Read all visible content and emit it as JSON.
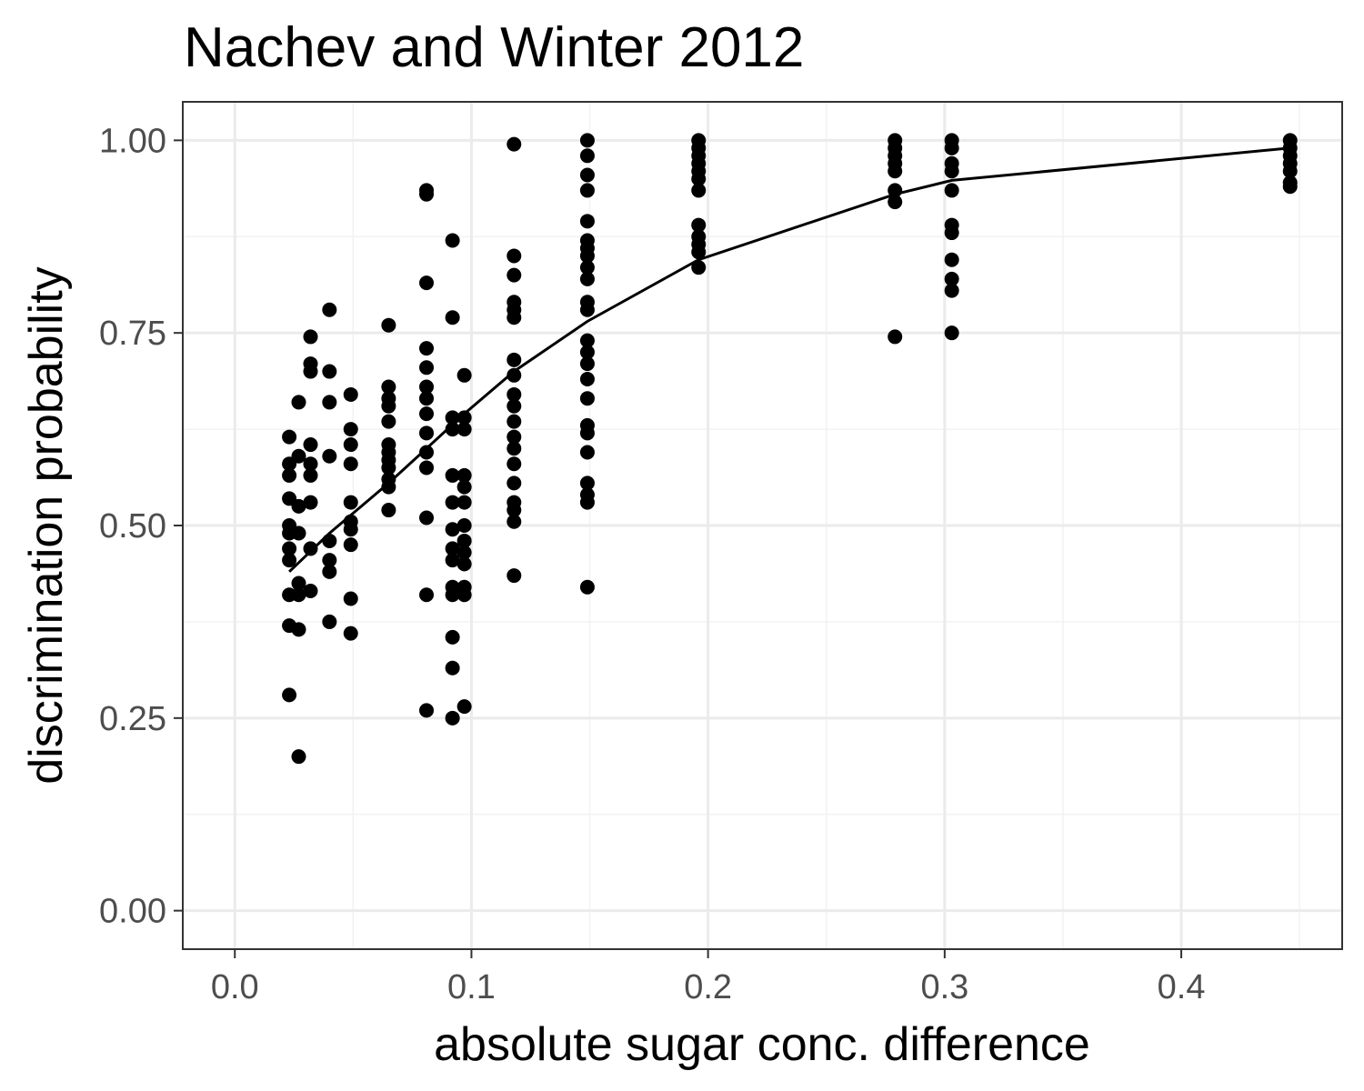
{
  "chart_data": {
    "type": "scatter",
    "title": "Nachev and Winter 2012",
    "xlabel": "absolute sugar conc. difference",
    "ylabel": "discrimination probability",
    "xlim": [
      -0.022,
      0.468
    ],
    "ylim": [
      -0.05,
      1.05
    ],
    "x_ticks": [
      0.0,
      0.1,
      0.2,
      0.3,
      0.4
    ],
    "x_tick_labels": [
      "0.0",
      "0.1",
      "0.2",
      "0.3",
      "0.4"
    ],
    "y_ticks": [
      0.0,
      0.25,
      0.5,
      0.75,
      1.0
    ],
    "y_tick_labels": [
      "0.00",
      "0.25",
      "0.50",
      "0.75",
      "1.00"
    ],
    "grid": true,
    "point_color": "#000000",
    "points": [
      [
        0.023,
        0.615
      ],
      [
        0.023,
        0.58
      ],
      [
        0.023,
        0.565
      ],
      [
        0.023,
        0.535
      ],
      [
        0.023,
        0.5
      ],
      [
        0.023,
        0.49
      ],
      [
        0.023,
        0.47
      ],
      [
        0.023,
        0.455
      ],
      [
        0.023,
        0.41
      ],
      [
        0.023,
        0.37
      ],
      [
        0.023,
        0.28
      ],
      [
        0.027,
        0.66
      ],
      [
        0.027,
        0.59
      ],
      [
        0.027,
        0.525
      ],
      [
        0.027,
        0.49
      ],
      [
        0.027,
        0.425
      ],
      [
        0.027,
        0.41
      ],
      [
        0.027,
        0.365
      ],
      [
        0.027,
        0.2
      ],
      [
        0.032,
        0.745
      ],
      [
        0.032,
        0.71
      ],
      [
        0.032,
        0.7
      ],
      [
        0.032,
        0.605
      ],
      [
        0.032,
        0.58
      ],
      [
        0.032,
        0.565
      ],
      [
        0.032,
        0.53
      ],
      [
        0.032,
        0.47
      ],
      [
        0.032,
        0.415
      ],
      [
        0.04,
        0.78
      ],
      [
        0.04,
        0.7
      ],
      [
        0.04,
        0.66
      ],
      [
        0.04,
        0.59
      ],
      [
        0.04,
        0.48
      ],
      [
        0.04,
        0.455
      ],
      [
        0.04,
        0.44
      ],
      [
        0.04,
        0.375
      ],
      [
        0.049,
        0.67
      ],
      [
        0.049,
        0.625
      ],
      [
        0.049,
        0.605
      ],
      [
        0.049,
        0.58
      ],
      [
        0.049,
        0.53
      ],
      [
        0.049,
        0.505
      ],
      [
        0.049,
        0.495
      ],
      [
        0.049,
        0.475
      ],
      [
        0.049,
        0.405
      ],
      [
        0.049,
        0.36
      ],
      [
        0.065,
        0.76
      ],
      [
        0.065,
        0.68
      ],
      [
        0.065,
        0.665
      ],
      [
        0.065,
        0.655
      ],
      [
        0.065,
        0.635
      ],
      [
        0.065,
        0.605
      ],
      [
        0.065,
        0.595
      ],
      [
        0.065,
        0.585
      ],
      [
        0.065,
        0.575
      ],
      [
        0.065,
        0.56
      ],
      [
        0.065,
        0.55
      ],
      [
        0.065,
        0.52
      ],
      [
        0.081,
        0.935
      ],
      [
        0.081,
        0.93
      ],
      [
        0.081,
        0.815
      ],
      [
        0.081,
        0.73
      ],
      [
        0.081,
        0.705
      ],
      [
        0.081,
        0.68
      ],
      [
        0.081,
        0.665
      ],
      [
        0.081,
        0.645
      ],
      [
        0.081,
        0.62
      ],
      [
        0.081,
        0.595
      ],
      [
        0.081,
        0.575
      ],
      [
        0.081,
        0.51
      ],
      [
        0.081,
        0.41
      ],
      [
        0.081,
        0.26
      ],
      [
        0.092,
        0.87
      ],
      [
        0.092,
        0.77
      ],
      [
        0.092,
        0.64
      ],
      [
        0.092,
        0.625
      ],
      [
        0.092,
        0.565
      ],
      [
        0.092,
        0.53
      ],
      [
        0.092,
        0.495
      ],
      [
        0.092,
        0.47
      ],
      [
        0.092,
        0.455
      ],
      [
        0.092,
        0.42
      ],
      [
        0.092,
        0.41
      ],
      [
        0.092,
        0.355
      ],
      [
        0.092,
        0.315
      ],
      [
        0.092,
        0.25
      ],
      [
        0.097,
        0.695
      ],
      [
        0.097,
        0.64
      ],
      [
        0.097,
        0.625
      ],
      [
        0.097,
        0.565
      ],
      [
        0.097,
        0.55
      ],
      [
        0.097,
        0.53
      ],
      [
        0.097,
        0.5
      ],
      [
        0.097,
        0.48
      ],
      [
        0.097,
        0.465
      ],
      [
        0.097,
        0.45
      ],
      [
        0.097,
        0.42
      ],
      [
        0.097,
        0.41
      ],
      [
        0.097,
        0.265
      ],
      [
        0.118,
        0.995
      ],
      [
        0.118,
        0.85
      ],
      [
        0.118,
        0.825
      ],
      [
        0.118,
        0.79
      ],
      [
        0.118,
        0.78
      ],
      [
        0.118,
        0.77
      ],
      [
        0.118,
        0.715
      ],
      [
        0.118,
        0.695
      ],
      [
        0.118,
        0.67
      ],
      [
        0.118,
        0.655
      ],
      [
        0.118,
        0.635
      ],
      [
        0.118,
        0.615
      ],
      [
        0.118,
        0.6
      ],
      [
        0.118,
        0.58
      ],
      [
        0.118,
        0.555
      ],
      [
        0.118,
        0.53
      ],
      [
        0.118,
        0.52
      ],
      [
        0.118,
        0.505
      ],
      [
        0.118,
        0.435
      ],
      [
        0.149,
        1.0
      ],
      [
        0.149,
        0.98
      ],
      [
        0.149,
        0.955
      ],
      [
        0.149,
        0.935
      ],
      [
        0.149,
        0.895
      ],
      [
        0.149,
        0.87
      ],
      [
        0.149,
        0.86
      ],
      [
        0.149,
        0.85
      ],
      [
        0.149,
        0.835
      ],
      [
        0.149,
        0.82
      ],
      [
        0.149,
        0.79
      ],
      [
        0.149,
        0.78
      ],
      [
        0.149,
        0.74
      ],
      [
        0.149,
        0.725
      ],
      [
        0.149,
        0.71
      ],
      [
        0.149,
        0.69
      ],
      [
        0.149,
        0.665
      ],
      [
        0.149,
        0.63
      ],
      [
        0.149,
        0.62
      ],
      [
        0.149,
        0.595
      ],
      [
        0.149,
        0.555
      ],
      [
        0.149,
        0.54
      ],
      [
        0.149,
        0.53
      ],
      [
        0.149,
        0.42
      ],
      [
        0.196,
        1.0
      ],
      [
        0.196,
        0.99
      ],
      [
        0.196,
        0.98
      ],
      [
        0.196,
        0.97
      ],
      [
        0.196,
        0.96
      ],
      [
        0.196,
        0.95
      ],
      [
        0.196,
        0.935
      ],
      [
        0.196,
        0.89
      ],
      [
        0.196,
        0.875
      ],
      [
        0.196,
        0.865
      ],
      [
        0.196,
        0.855
      ],
      [
        0.196,
        0.835
      ],
      [
        0.279,
        1.0
      ],
      [
        0.279,
        0.99
      ],
      [
        0.279,
        0.98
      ],
      [
        0.279,
        0.97
      ],
      [
        0.279,
        0.96
      ],
      [
        0.279,
        0.935
      ],
      [
        0.279,
        0.92
      ],
      [
        0.279,
        0.745
      ],
      [
        0.303,
        1.0
      ],
      [
        0.303,
        0.99
      ],
      [
        0.303,
        0.97
      ],
      [
        0.303,
        0.96
      ],
      [
        0.303,
        0.935
      ],
      [
        0.303,
        0.89
      ],
      [
        0.303,
        0.88
      ],
      [
        0.303,
        0.845
      ],
      [
        0.303,
        0.82
      ],
      [
        0.303,
        0.805
      ],
      [
        0.303,
        0.75
      ],
      [
        0.446,
        1.0
      ],
      [
        0.446,
        0.99
      ],
      [
        0.446,
        0.98
      ],
      [
        0.446,
        0.97
      ],
      [
        0.446,
        0.96
      ],
      [
        0.446,
        0.945
      ],
      [
        0.446,
        0.94
      ]
    ],
    "fit_line": [
      [
        0.023,
        0.44
      ],
      [
        0.04,
        0.49
      ],
      [
        0.065,
        0.555
      ],
      [
        0.081,
        0.6
      ],
      [
        0.097,
        0.645
      ],
      [
        0.118,
        0.7
      ],
      [
        0.149,
        0.765
      ],
      [
        0.196,
        0.845
      ],
      [
        0.279,
        0.93
      ],
      [
        0.303,
        0.948
      ],
      [
        0.446,
        0.99
      ]
    ]
  }
}
